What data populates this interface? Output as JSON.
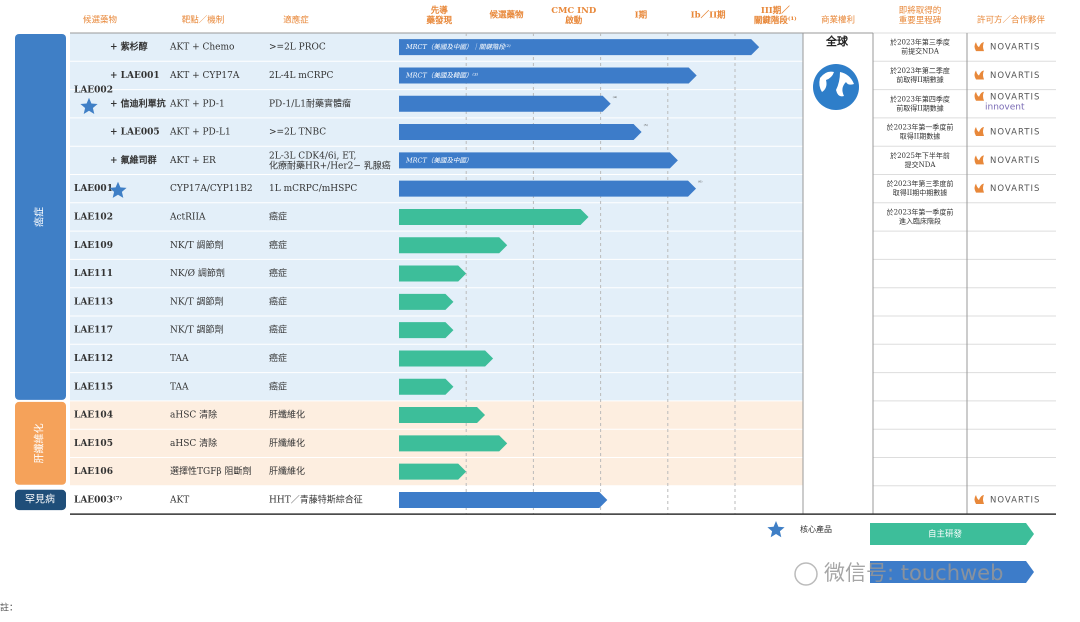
{
  "header": {
    "drug": "候選藥物",
    "mechanism": "靶點／機制",
    "indication": "適應症",
    "phases": [
      "先導\n藥發現",
      "候選藥物",
      "CMC IND\n啟動",
      "I期",
      "Ib／II期",
      "III期／\n關鍵階段⁽¹⁾"
    ],
    "rights": "商業權利",
    "milestone": "即將取得的\n重要里程碑",
    "partner": "許可方／合作夥伴"
  },
  "rights_value": "全球",
  "groups": [
    {
      "name": "癌症",
      "color": "#3f7fc6",
      "bg": "#e3eff9",
      "rows": [
        {
          "drug": "LAE002",
          "core": true,
          "combos": [
            {
              "combo": "+ 紫杉醇",
              "mechanism": "AKT + Chemo",
              "indication": ">=2L PROC",
              "bar_label": "MRCT（美國及中國）｜關鍵階段⁽²⁾",
              "progress": 5.36,
              "color": "#3d7cc9",
              "milestone": "於2023年第三季度\n前提交NDA",
              "partners": [
                "NOVARTIS"
              ]
            },
            {
              "combo": "+ LAE001",
              "mechanism": "AKT + CYP17A",
              "indication": "2L-4L mCRPC",
              "bar_label": "MRCT（美國及韓國）⁽³⁾",
              "progress": 4.43,
              "color": "#3d7cc9",
              "milestone": "於2023年第二季度\n前取得II期數據",
              "partners": [
                "NOVARTIS"
              ]
            },
            {
              "combo": "+ 信迪利單抗",
              "mechanism": "AKT + PD-1",
              "indication": "PD-1/L1耐藥實體瘤",
              "bar_label": "⁽⁴⁾",
              "progress": 3.15,
              "color": "#3d7cc9",
              "milestone": "於2023年第四季度\n前取得II期數據",
              "partners": [
                "NOVARTIS",
                "innovent"
              ]
            },
            {
              "combo": "+ LAE005",
              "mechanism": "AKT + PD-L1",
              "indication": ">=2L TNBC",
              "bar_label": "⁽⁵⁾",
              "progress": 3.61,
              "color": "#3d7cc9",
              "milestone": "於2023年第一季度前\n取得II期數據",
              "partners": [
                "NOVARTIS"
              ]
            },
            {
              "combo": "+ 氟維司群",
              "mechanism": "AKT + ER",
              "indication": "2L-3L CDK4/6i, ET,\n化療耐藥HR+/Her2− 乳腺癌",
              "bar_label": "MRCT（美國及中國）",
              "progress": 4.15,
              "color": "#3d7cc9",
              "milestone": "於2025年下半年前\n提交NDA",
              "partners": [
                "NOVARTIS"
              ]
            }
          ]
        },
        {
          "drug": "LAE001",
          "core": true,
          "mechanism": "CYP17A/CYP11B2",
          "indication": "1L mCRPC/mHSPC",
          "bar_label": "⁽⁶⁾",
          "progress": 4.42,
          "color": "#3d7cc9",
          "milestone": "於2023年第三季度前\n取得II期中期數據",
          "partners": [
            "NOVARTIS"
          ]
        },
        {
          "drug": "LAE102",
          "mechanism": "ActRIIA",
          "indication": "癌症",
          "progress": 2.82,
          "color": "#3dbe9a",
          "milestone": "於2023年第一季度前\n進入臨床階段"
        },
        {
          "drug": "LAE109",
          "mechanism": "NK/T 調節劑",
          "indication": "癌症",
          "progress": 1.61,
          "color": "#3dbe9a"
        },
        {
          "drug": "LAE111",
          "mechanism": "NK/Ø 調節劑",
          "indication": "癌症",
          "progress": 1.0,
          "color": "#3dbe9a"
        },
        {
          "drug": "LAE113",
          "mechanism": "NK/T 調節劑",
          "indication": "癌症",
          "progress": 0.81,
          "color": "#3dbe9a"
        },
        {
          "drug": "LAE117",
          "mechanism": "NK/T 調節劑",
          "indication": "癌症",
          "progress": 0.81,
          "color": "#3dbe9a"
        },
        {
          "drug": "LAE112",
          "mechanism": "TAA",
          "indication": "癌症",
          "progress": 1.4,
          "color": "#3dbe9a"
        },
        {
          "drug": "LAE115",
          "mechanism": "TAA",
          "indication": "癌症",
          "progress": 0.81,
          "color": "#3dbe9a"
        }
      ]
    },
    {
      "name": "肝纖維化",
      "color": "#f5a25a",
      "bg": "#fdeee0",
      "rows": [
        {
          "drug": "LAE104",
          "mechanism": "aHSC 清除",
          "indication": "肝纖維化",
          "progress": 1.28,
          "color": "#3dbe9a"
        },
        {
          "drug": "LAE105",
          "mechanism": "aHSC 清除",
          "indication": "肝纖維化",
          "progress": 1.61,
          "color": "#3dbe9a"
        },
        {
          "drug": "LAE106",
          "mechanism": "選擇性TGFβ 阻斷劑",
          "indication": "肝纖維化",
          "progress": 1.0,
          "color": "#3dbe9a"
        }
      ]
    },
    {
      "name": "罕見病",
      "color": "#1f4e79",
      "bg": "#ffffff",
      "rows": [
        {
          "drug": "LAE003⁽⁷⁾",
          "mechanism": "AKT",
          "indication": "HHT／青藤特斯綜合征",
          "progress": 3.1,
          "color": "#3d7cc9",
          "partners": [
            "NOVARTIS"
          ]
        }
      ]
    }
  ],
  "legend": [
    {
      "label": "核心產品"
    },
    {
      "label": "自主研發",
      "color": "#3dbe9a"
    }
  ],
  "watermark": "微信号: touchweb",
  "footnote": "註："
}
